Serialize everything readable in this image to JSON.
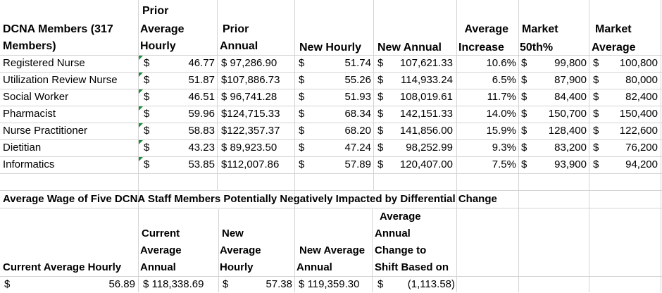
{
  "table": {
    "headers": {
      "members": [
        "DCNA Members (317",
        "Members)"
      ],
      "prior_avg_hourly": [
        "Prior",
        "Average",
        "Hourly"
      ],
      "prior_annual": [
        "Prior",
        "Annual"
      ],
      "new_hourly": "New Hourly",
      "new_annual": "New Annual",
      "avg_increase": [
        "Average",
        "Increase"
      ],
      "market_50th": [
        "Market",
        "50th%"
      ],
      "market_avg": [
        "Market",
        "Average"
      ]
    },
    "currency": "$",
    "rows": [
      {
        "name": "Registered Nurse",
        "prior_hourly": "46.77",
        "prior_annual": "$ 97,286.90",
        "new_hourly": "51.74",
        "new_annual": "107,621.33",
        "increase": "10.6%",
        "m50": "99,800",
        "mavg": "100,800"
      },
      {
        "name": "Utilization Review Nurse",
        "prior_hourly": "51.87",
        "prior_annual": "$107,886.73",
        "new_hourly": "55.26",
        "new_annual": "114,933.24",
        "increase": "6.5%",
        "m50": "87,900",
        "mavg": "80,000"
      },
      {
        "name": "Social Worker",
        "prior_hourly": "46.51",
        "prior_annual": "$ 96,741.28",
        "new_hourly": "51.93",
        "new_annual": "108,019.61",
        "increase": "11.7%",
        "m50": "84,400",
        "mavg": "82,400"
      },
      {
        "name": "Pharmacist",
        "prior_hourly": "59.96",
        "prior_annual": "$124,715.33",
        "new_hourly": "68.34",
        "new_annual": "142,151.33",
        "increase": "14.0%",
        "m50": "150,700",
        "mavg": "150,400"
      },
      {
        "name": "Nurse Practitioner",
        "prior_hourly": "58.83",
        "prior_annual": "$122,357.37",
        "new_hourly": "68.20",
        "new_annual": "141,856.00",
        "increase": "15.9%",
        "m50": "128,400",
        "mavg": "122,600"
      },
      {
        "name": "Dietitian",
        "prior_hourly": "43.23",
        "prior_annual": "$ 89,923.50",
        "new_hourly": "47.24",
        "new_annual": "98,252.99",
        "increase": "9.3%",
        "m50": "83,200",
        "mavg": "76,200"
      },
      {
        "name": "Informatics",
        "prior_hourly": "53.85",
        "prior_annual": "$112,007.86",
        "new_hourly": "57.89",
        "new_annual": "120,407.00",
        "increase": "7.5%",
        "m50": "93,900",
        "mavg": "94,200"
      }
    ]
  },
  "section2": {
    "title": "Average Wage of Five DCNA Staff Members Potentially Negatively Impacted by Differential Change",
    "headers": {
      "current_avg_hourly": "Current Average Hourly",
      "current_avg_annual": [
        "Current",
        "Average",
        "Annual"
      ],
      "new_avg_hourly": [
        "New",
        "Average",
        "Hourly"
      ],
      "new_avg_annual": [
        "New Average",
        "Annual"
      ],
      "avg_annual_change": [
        "Average",
        "Annual",
        "Change to",
        "Shift Based on"
      ]
    },
    "values": {
      "current_hourly": "56.89",
      "current_annual": "$ 118,338.69",
      "new_hourly": "57.38",
      "new_annual": "$ 119,359.30",
      "change": "(1,113.58)"
    }
  }
}
